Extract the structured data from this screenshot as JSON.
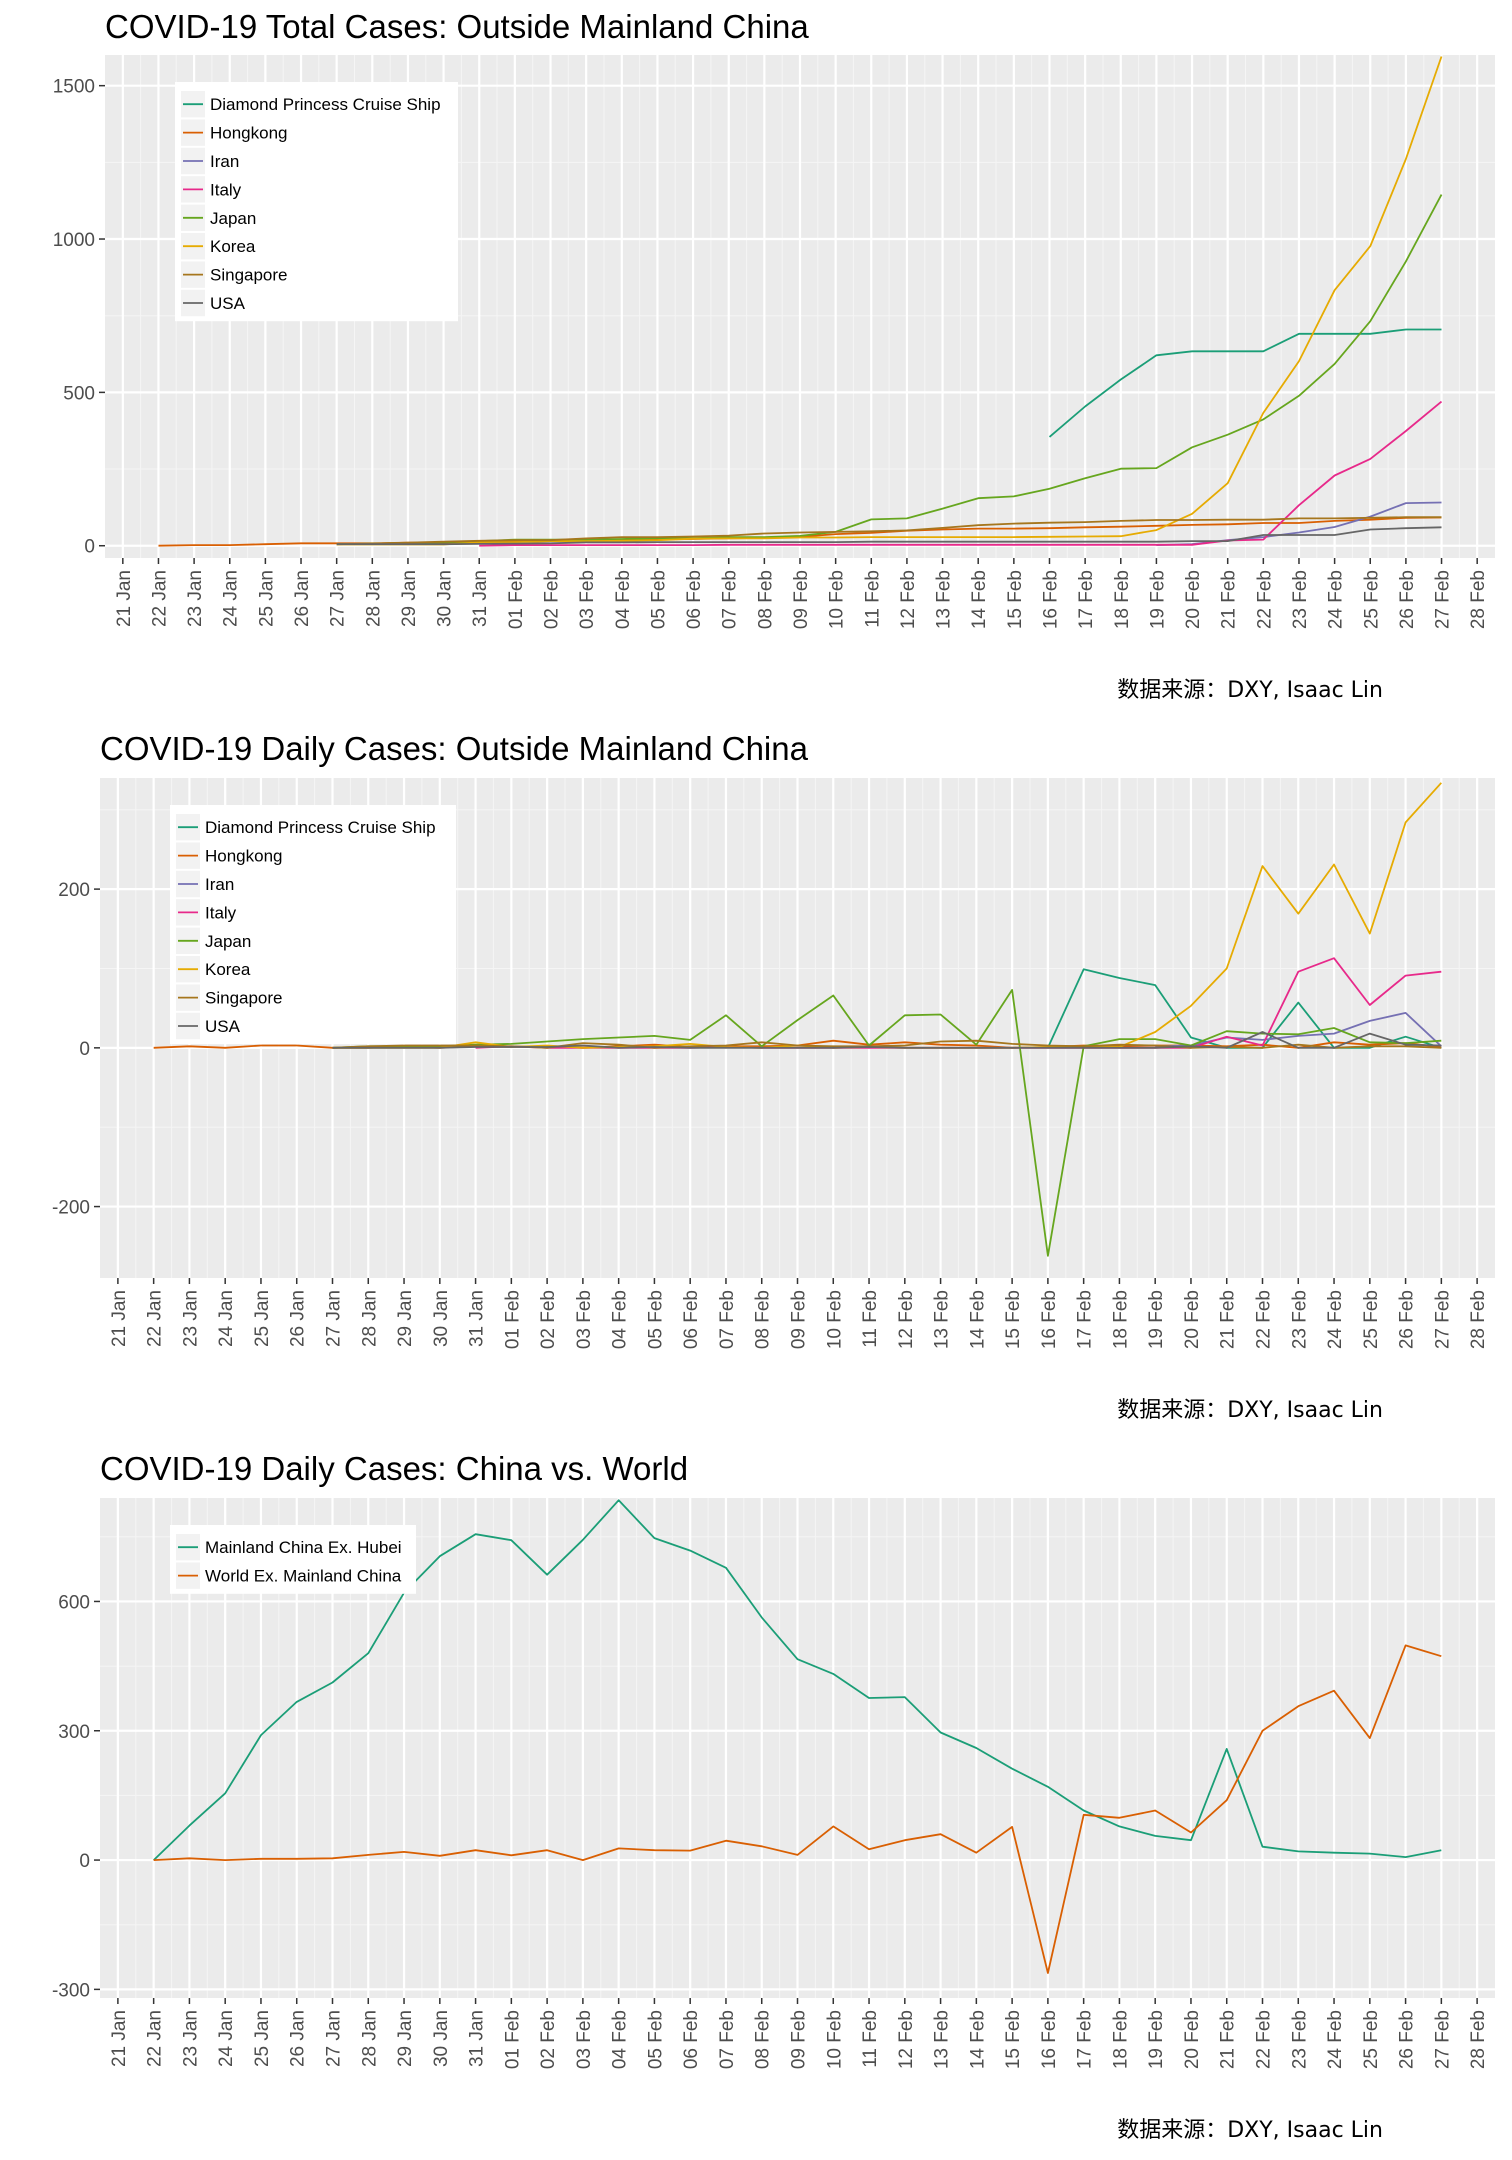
{
  "chart_data": [
    {
      "type": "line",
      "title": "COVID-19 Total Cases: Outside Mainland China",
      "caption": "数据来源：DXY, Isaac Lin",
      "xlabel": "",
      "ylabel": "",
      "x": [
        "21 Jan",
        "22 Jan",
        "23 Jan",
        "24 Jan",
        "25 Jan",
        "26 Jan",
        "27 Jan",
        "28 Jan",
        "29 Jan",
        "30 Jan",
        "31 Jan",
        "01 Feb",
        "02 Feb",
        "03 Feb",
        "04 Feb",
        "05 Feb",
        "06 Feb",
        "07 Feb",
        "08 Feb",
        "09 Feb",
        "10 Feb",
        "11 Feb",
        "12 Feb",
        "13 Feb",
        "14 Feb",
        "15 Feb",
        "16 Feb",
        "17 Feb",
        "18 Feb",
        "19 Feb",
        "20 Feb",
        "21 Feb",
        "22 Feb",
        "23 Feb",
        "24 Feb",
        "25 Feb",
        "26 Feb",
        "27 Feb",
        "28 Feb"
      ],
      "ylim": [
        -40,
        1600
      ],
      "yticks": [
        0,
        500,
        1000,
        1500
      ],
      "grid": true,
      "legend_position": "top-left",
      "series": [
        {
          "name": "Diamond Princess Cruise Ship",
          "color": "#1b9e77",
          "values": [
            null,
            null,
            null,
            null,
            null,
            null,
            null,
            null,
            null,
            null,
            null,
            null,
            null,
            null,
            null,
            null,
            null,
            null,
            null,
            null,
            null,
            null,
            null,
            null,
            null,
            null,
            355,
            454,
            542,
            621,
            634,
            634,
            634,
            691,
            691,
            691,
            705,
            705,
            null
          ]
        },
        {
          "name": "Hongkong",
          "color": "#d95f02",
          "values": [
            null,
            0,
            2,
            2,
            5,
            8,
            8,
            8,
            10,
            10,
            12,
            13,
            15,
            15,
            17,
            21,
            22,
            24,
            26,
            29,
            38,
            42,
            49,
            53,
            56,
            56,
            57,
            60,
            62,
            65,
            68,
            70,
            74,
            74,
            81,
            85,
            91,
            92,
            null
          ]
        },
        {
          "name": "Iran",
          "color": "#7570b3",
          "values": [
            null,
            null,
            null,
            null,
            null,
            null,
            null,
            null,
            null,
            null,
            null,
            null,
            null,
            null,
            null,
            null,
            null,
            null,
            null,
            null,
            null,
            null,
            null,
            null,
            null,
            null,
            null,
            null,
            null,
            2,
            5,
            18,
            28,
            43,
            61,
            95,
            139,
            141,
            null
          ]
        },
        {
          "name": "Italy",
          "color": "#e7298a",
          "values": [
            null,
            null,
            null,
            null,
            null,
            null,
            null,
            null,
            null,
            null,
            0,
            2,
            2,
            2,
            2,
            2,
            2,
            3,
            3,
            3,
            3,
            3,
            3,
            3,
            3,
            3,
            3,
            3,
            3,
            3,
            3,
            17,
            20,
            132,
            229,
            283,
            374,
            470,
            null
          ]
        },
        {
          "name": "Japan",
          "color": "#66a61e",
          "values": [
            null,
            null,
            null,
            null,
            null,
            null,
            5,
            7,
            9,
            11,
            15,
            20,
            20,
            20,
            22,
            25,
            25,
            28,
            28,
            32,
            45,
            86,
            89,
            121,
            155,
            161,
            186,
            220,
            251,
            253,
            321,
            362,
            412,
            489,
            593,
            732,
            927,
            1145,
            null
          ]
        },
        {
          "name": "Korea",
          "color": "#e6ab02",
          "values": [
            null,
            null,
            null,
            null,
            null,
            null,
            4,
            4,
            4,
            4,
            11,
            12,
            15,
            15,
            16,
            18,
            23,
            24,
            24,
            27,
            27,
            28,
            28,
            28,
            28,
            28,
            29,
            30,
            31,
            51,
            104,
            204,
            433,
            602,
            833,
            977,
            1261,
            1595,
            null
          ]
        },
        {
          "name": "Singapore",
          "color": "#a6761d",
          "values": [
            null,
            null,
            null,
            null,
            null,
            null,
            5,
            7,
            10,
            13,
            16,
            18,
            18,
            24,
            28,
            28,
            30,
            33,
            40,
            43,
            45,
            47,
            50,
            58,
            67,
            72,
            75,
            77,
            81,
            84,
            84,
            85,
            85,
            89,
            89,
            91,
            93,
            93,
            null
          ]
        },
        {
          "name": "USA",
          "color": "#666666",
          "values": [
            null,
            null,
            null,
            null,
            null,
            null,
            5,
            5,
            5,
            5,
            6,
            7,
            8,
            11,
            11,
            12,
            12,
            12,
            12,
            12,
            12,
            13,
            13,
            13,
            13,
            13,
            13,
            13,
            13,
            13,
            15,
            15,
            35,
            35,
            35,
            53,
            57,
            60,
            null
          ]
        }
      ]
    },
    {
      "type": "line",
      "title": "COVID-19 Daily Cases: Outside Mainland China",
      "caption": "数据来源：DXY, Isaac Lin",
      "xlabel": "",
      "ylabel": "",
      "x": [
        "21 Jan",
        "22 Jan",
        "23 Jan",
        "24 Jan",
        "25 Jan",
        "26 Jan",
        "27 Jan",
        "28 Jan",
        "29 Jan",
        "30 Jan",
        "31 Jan",
        "01 Feb",
        "02 Feb",
        "03 Feb",
        "04 Feb",
        "05 Feb",
        "06 Feb",
        "07 Feb",
        "08 Feb",
        "09 Feb",
        "10 Feb",
        "11 Feb",
        "12 Feb",
        "13 Feb",
        "14 Feb",
        "15 Feb",
        "16 Feb",
        "17 Feb",
        "18 Feb",
        "19 Feb",
        "20 Feb",
        "21 Feb",
        "22 Feb",
        "23 Feb",
        "24 Feb",
        "25 Feb",
        "26 Feb",
        "27 Feb",
        "28 Feb"
      ],
      "ylim": [
        -290,
        340
      ],
      "yticks": [
        -200,
        0,
        200
      ],
      "grid": true,
      "legend_position": "top-left",
      "series": [
        {
          "name": "Diamond Princess Cruise Ship",
          "color": "#1b9e77",
          "values": [
            null,
            null,
            null,
            null,
            null,
            null,
            null,
            null,
            null,
            null,
            null,
            null,
            null,
            null,
            null,
            null,
            null,
            null,
            null,
            null,
            null,
            null,
            null,
            null,
            null,
            null,
            0,
            99,
            88,
            79,
            13,
            0,
            0,
            57,
            0,
            0,
            14,
            0,
            null
          ]
        },
        {
          "name": "Hongkong",
          "color": "#d95f02",
          "values": [
            null,
            0,
            2,
            0,
            3,
            3,
            0,
            0,
            2,
            0,
            2,
            1,
            2,
            0,
            2,
            4,
            1,
            2,
            2,
            3,
            9,
            4,
            7,
            4,
            3,
            0,
            1,
            3,
            2,
            3,
            3,
            2,
            4,
            0,
            7,
            4,
            6,
            1,
            null
          ]
        },
        {
          "name": "Iran",
          "color": "#7570b3",
          "values": [
            null,
            null,
            null,
            null,
            null,
            null,
            null,
            null,
            null,
            null,
            null,
            null,
            null,
            null,
            null,
            null,
            null,
            null,
            null,
            null,
            null,
            null,
            null,
            null,
            null,
            null,
            null,
            null,
            null,
            2,
            3,
            13,
            10,
            15,
            18,
            34,
            44,
            2,
            null
          ]
        },
        {
          "name": "Italy",
          "color": "#e7298a",
          "values": [
            null,
            null,
            null,
            null,
            null,
            null,
            null,
            null,
            null,
            null,
            0,
            2,
            0,
            0,
            0,
            0,
            0,
            1,
            0,
            0,
            0,
            0,
            0,
            0,
            0,
            0,
            0,
            0,
            0,
            0,
            0,
            14,
            3,
            96,
            113,
            54,
            91,
            96,
            null
          ]
        },
        {
          "name": "Japan",
          "color": "#66a61e",
          "values": [
            null,
            null,
            null,
            null,
            null,
            null,
            0,
            2,
            2,
            2,
            4,
            5,
            8,
            11,
            13,
            15,
            10,
            41,
            2,
            35,
            66,
            3,
            41,
            42,
            4,
            73,
            -262,
            2,
            11,
            11,
            3,
            21,
            18,
            17,
            25,
            7,
            6,
            9,
            null
          ]
        },
        {
          "name": "Korea",
          "color": "#e6ab02",
          "values": [
            null,
            null,
            null,
            null,
            null,
            null,
            0,
            0,
            0,
            0,
            7,
            1,
            3,
            0,
            1,
            2,
            5,
            1,
            0,
            3,
            0,
            1,
            0,
            0,
            0,
            0,
            1,
            1,
            1,
            20,
            53,
            100,
            229,
            169,
            231,
            144,
            284,
            334,
            null
          ]
        },
        {
          "name": "Singapore",
          "color": "#a6761d",
          "values": [
            null,
            null,
            null,
            null,
            null,
            null,
            0,
            2,
            3,
            3,
            3,
            2,
            0,
            6,
            4,
            0,
            2,
            3,
            7,
            3,
            2,
            2,
            3,
            8,
            9,
            5,
            3,
            2,
            4,
            3,
            0,
            1,
            0,
            4,
            0,
            2,
            2,
            0,
            null
          ]
        },
        {
          "name": "USA",
          "color": "#666666",
          "values": [
            null,
            null,
            null,
            null,
            null,
            null,
            0,
            0,
            0,
            0,
            1,
            1,
            1,
            3,
            0,
            1,
            0,
            0,
            0,
            0,
            0,
            1,
            0,
            0,
            0,
            0,
            0,
            0,
            0,
            0,
            2,
            0,
            20,
            0,
            0,
            18,
            4,
            3,
            null
          ]
        }
      ]
    },
    {
      "type": "line",
      "title": "COVID-19 Daily Cases: China vs. World",
      "caption": "数据来源：DXY, Isaac Lin",
      "xlabel": "",
      "ylabel": "",
      "x": [
        "21 Jan",
        "22 Jan",
        "23 Jan",
        "24 Jan",
        "25 Jan",
        "26 Jan",
        "27 Jan",
        "28 Jan",
        "29 Jan",
        "30 Jan",
        "31 Jan",
        "01 Feb",
        "02 Feb",
        "03 Feb",
        "04 Feb",
        "05 Feb",
        "06 Feb",
        "07 Feb",
        "08 Feb",
        "09 Feb",
        "10 Feb",
        "11 Feb",
        "12 Feb",
        "13 Feb",
        "14 Feb",
        "15 Feb",
        "16 Feb",
        "17 Feb",
        "18 Feb",
        "19 Feb",
        "20 Feb",
        "21 Feb",
        "22 Feb",
        "23 Feb",
        "24 Feb",
        "25 Feb",
        "26 Feb",
        "27 Feb",
        "28 Feb"
      ],
      "ylim": [
        -320,
        840
      ],
      "yticks": [
        -300,
        0,
        300,
        600
      ],
      "grid": true,
      "legend_position": "top-left",
      "series": [
        {
          "name": "Mainland China Ex. Hubei",
          "color": "#1b9e77",
          "values": [
            null,
            0,
            80,
            155,
            290,
            367,
            412,
            480,
            620,
            705,
            756,
            742,
            662,
            743,
            835,
            747,
            718,
            678,
            563,
            466,
            432,
            376,
            378,
            296,
            260,
            212,
            170,
            115,
            78,
            56,
            46,
            258,
            31,
            20,
            17,
            15,
            7,
            23,
            null
          ]
        },
        {
          "name": "World Ex. Mainland China",
          "color": "#d95f02",
          "values": [
            null,
            0,
            4,
            0,
            3,
            3,
            4,
            12,
            19,
            10,
            23,
            11,
            23,
            0,
            27,
            23,
            22,
            45,
            32,
            12,
            78,
            25,
            46,
            60,
            17,
            77,
            -262,
            105,
            98,
            115,
            64,
            139,
            300,
            357,
            393,
            283,
            498,
            473,
            null
          ]
        }
      ]
    }
  ]
}
